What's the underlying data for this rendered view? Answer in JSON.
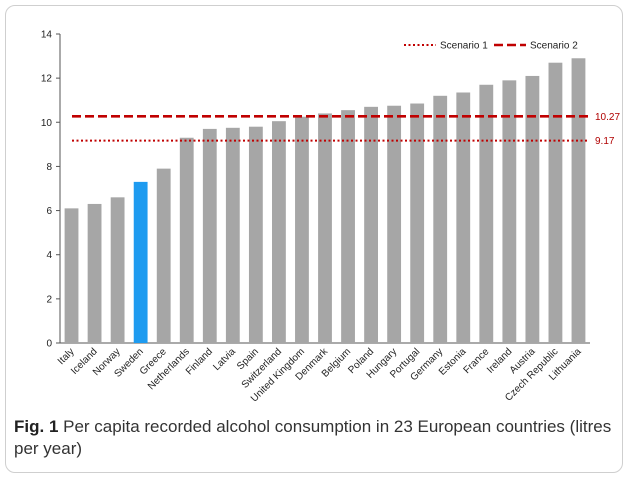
{
  "chart_data": {
    "type": "bar",
    "categories": [
      "Italy",
      "Iceland",
      "Norway",
      "Sweden",
      "Greece",
      "Netherlands",
      "Finland",
      "Latvia",
      "Spain",
      "Switzerland",
      "United Kingdom",
      "Denmark",
      "Belgium",
      "Poland",
      "Hungary",
      "Portugal",
      "Germany",
      "Estonia",
      "France",
      "Ireland",
      "Austria",
      "Czech Republic",
      "Lithuania"
    ],
    "values": [
      6.1,
      6.3,
      6.6,
      7.3,
      7.9,
      9.3,
      9.7,
      9.75,
      9.8,
      10.05,
      10.25,
      10.4,
      10.55,
      10.7,
      10.75,
      10.85,
      11.2,
      11.35,
      11.7,
      11.9,
      12.1,
      12.7,
      12.9
    ],
    "highlight_category": "Sweden",
    "bar_color": "#a6a6a6",
    "highlight_color": "#1e9bf0",
    "ylim": [
      0,
      14
    ],
    "yticks": [
      0,
      2,
      4,
      6,
      8,
      10,
      12,
      14
    ],
    "grid": false,
    "legend_position": "top-right",
    "reference_lines": [
      {
        "name": "Scenario 1",
        "value": 9.17,
        "label": "9.17",
        "style": "dotted",
        "color": "#c00000"
      },
      {
        "name": "Scenario 2",
        "value": 10.27,
        "label": "10.27",
        "style": "dashed",
        "color": "#c00000"
      }
    ]
  },
  "caption": {
    "prefix": "Fig. 1",
    "text": " Per capita recorded alcohol consumption in 23 European countries (litres per year)"
  }
}
